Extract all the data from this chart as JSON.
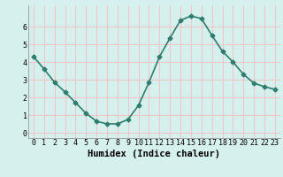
{
  "x": [
    0,
    1,
    2,
    3,
    4,
    5,
    6,
    7,
    8,
    9,
    10,
    11,
    12,
    13,
    14,
    15,
    16,
    17,
    18,
    19,
    20,
    21,
    22,
    23
  ],
  "y": [
    4.3,
    3.6,
    2.85,
    2.3,
    1.7,
    1.1,
    0.65,
    0.5,
    0.5,
    0.75,
    1.55,
    2.85,
    4.3,
    5.35,
    6.35,
    6.6,
    6.45,
    5.5,
    4.6,
    4.0,
    3.3,
    2.8,
    2.6,
    2.45
  ],
  "line_color": "#2e7d6e",
  "marker": "D",
  "marker_size": 2.5,
  "background_color": "#d6f0ee",
  "grid_color": "#f0c8c8",
  "xlabel": "Humidex (Indice chaleur)",
  "xlabel_fontsize": 7.5,
  "xlim": [
    -0.5,
    23.5
  ],
  "ylim": [
    -0.3,
    7.2
  ],
  "yticks": [
    0,
    1,
    2,
    3,
    4,
    5,
    6
  ],
  "xticks": [
    0,
    1,
    2,
    3,
    4,
    5,
    6,
    7,
    8,
    9,
    10,
    11,
    12,
    13,
    14,
    15,
    16,
    17,
    18,
    19,
    20,
    21,
    22,
    23
  ],
  "tick_fontsize": 6,
  "line_width": 1.2
}
